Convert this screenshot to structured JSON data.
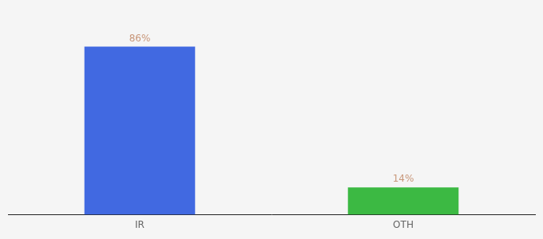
{
  "chart_data": {
    "type": "bar",
    "categories": [
      "IR",
      "OTH"
    ],
    "values": [
      86,
      14
    ],
    "value_labels": [
      "86%",
      "14%"
    ],
    "colors": [
      "#4169e1",
      "#3cb943"
    ],
    "ylim": [
      0,
      100
    ],
    "data_labels": true,
    "tick_labels": "x",
    "grid": false
  }
}
